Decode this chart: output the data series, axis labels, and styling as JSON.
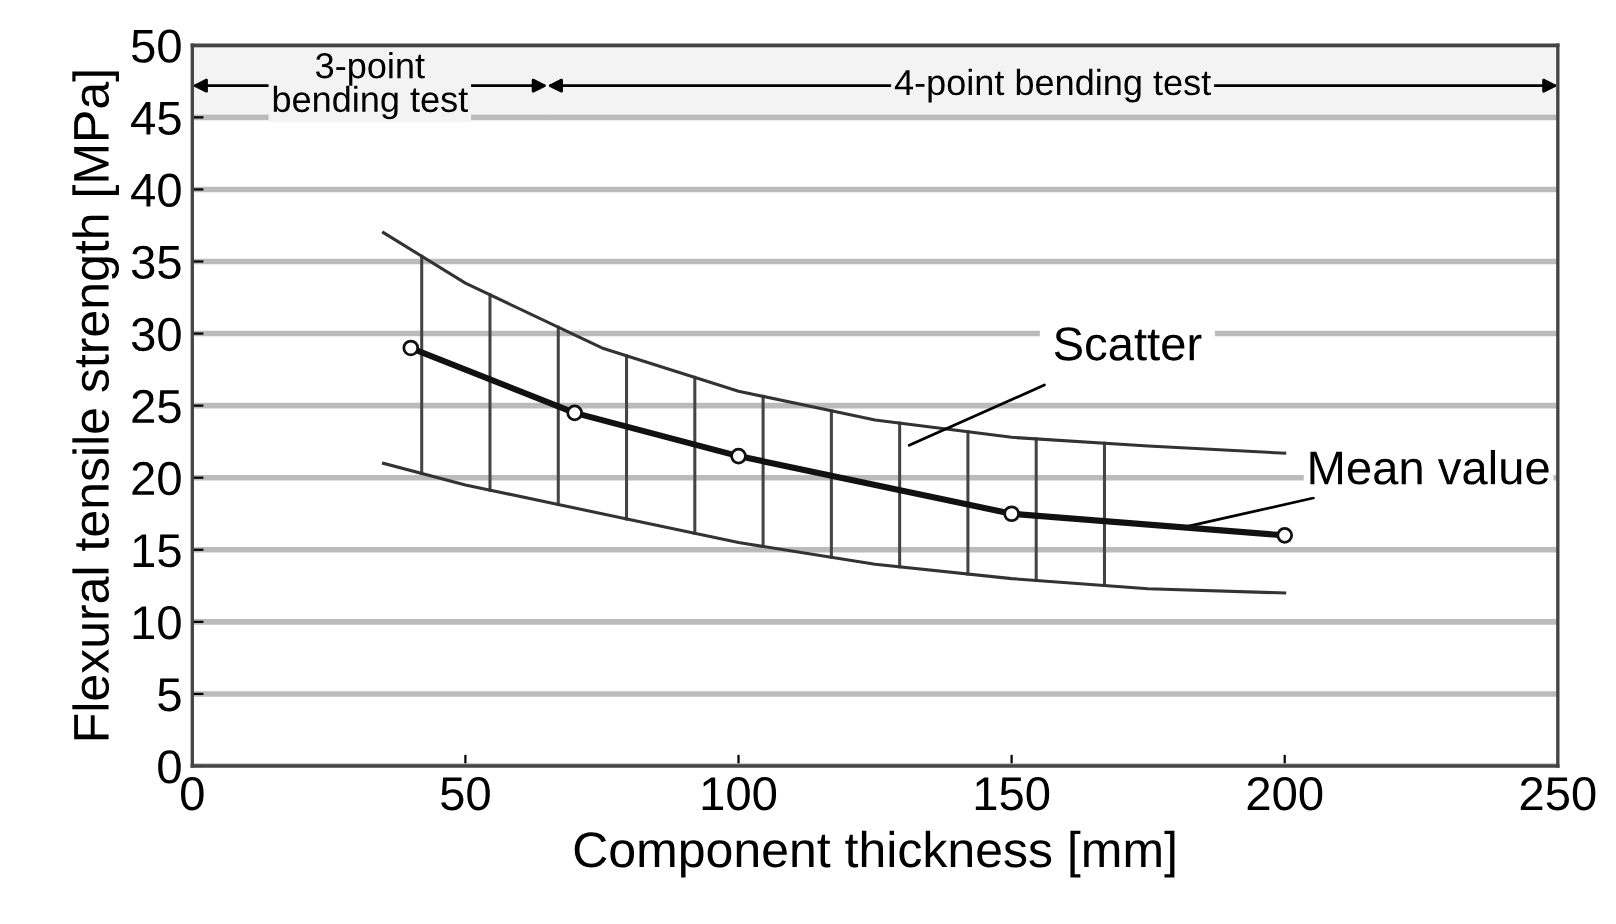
{
  "chart_data": {
    "type": "line",
    "xlabel": "Component thickness [mm]",
    "ylabel": "Flexural tensile strength [MPa]",
    "xlim": [
      0,
      250
    ],
    "xticks": [
      0,
      50,
      100,
      150,
      200,
      250
    ],
    "ylim": [
      0,
      50
    ],
    "yticks": [
      0,
      5,
      10,
      15,
      20,
      25,
      30,
      35,
      40,
      45,
      50
    ],
    "grid": "y",
    "series": [
      {
        "color": "#333333",
        "marker": "none",
        "x": [
          35,
          50,
          75,
          100,
          125,
          150,
          175,
          200
        ],
        "values": [
          37,
          33.5,
          29,
          26,
          24,
          22.8,
          22.2,
          21.7
        ]
      },
      {
        "color": "#333333",
        "marker": "none",
        "x": [
          35,
          50,
          75,
          100,
          125,
          150,
          175,
          200
        ],
        "values": [
          21,
          19.5,
          17.5,
          15.5,
          14,
          13,
          12.3,
          12
        ]
      },
      {
        "color": "#111111",
        "marker": "circle",
        "x": [
          40,
          70,
          100,
          150,
          200
        ],
        "values": [
          29,
          24.5,
          21.5,
          17.5,
          16
        ]
      }
    ],
    "bands": [
      {
        "axis": "x",
        "from": 0,
        "to": 65,
        "label": "3-point\nbending test",
        "color": "#f3f3f3"
      },
      {
        "axis": "x",
        "from": 65,
        "to": 250,
        "label": "4-point bending test",
        "color": "#f3f3f3"
      }
    ],
    "annotations": [
      "Scatter",
      {
        "text": "Mean value",
        "x": 182,
        "y": 16.6
      }
    ]
  }
}
